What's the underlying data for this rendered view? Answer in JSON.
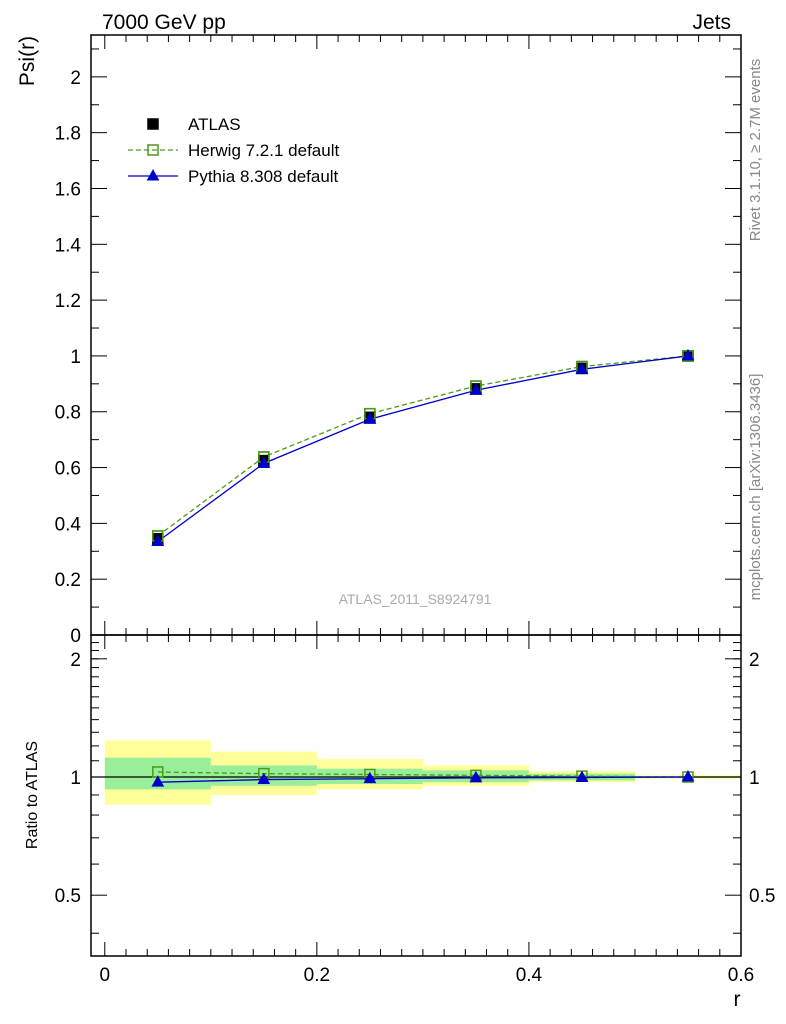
{
  "header": {
    "energy_label": "7000 GeV pp",
    "category_label": "Jets"
  },
  "side_labels": {
    "rivet": "Rivet 3.1.10, ≥ 2.7M events",
    "mcplots": "mcplots.cern.ch [arXiv:1306.3436]"
  },
  "analysis_label": "ATLAS_2011_S8924791",
  "colors": {
    "atlas": "#000000",
    "herwig": "#4a9a1a",
    "pythia": "#0000cc",
    "band_inner": "#99ee99",
    "band_outer": "#ffff99"
  },
  "chart_data": [
    {
      "type": "line",
      "xlabel": "",
      "ylabel": "Psi(r)",
      "xlim": [
        -0.013,
        0.6
      ],
      "ylim": [
        0,
        2.15
      ],
      "legend_position": "top-left",
      "y_ticks": [
        "0",
        "0.2",
        "0.4",
        "0.6",
        "0.8",
        "1",
        "1.2",
        "1.4",
        "1.6",
        "1.8",
        "2"
      ],
      "x": [
        0.05,
        0.15,
        0.25,
        0.35,
        0.45,
        0.55
      ],
      "series": [
        {
          "name": "ATLAS",
          "style": "points",
          "values": [
            0.345,
            0.625,
            0.78,
            0.882,
            0.955,
            1.0
          ]
        },
        {
          "name": "Herwig 7.2.1 default",
          "style": "dashed",
          "values": [
            0.355,
            0.638,
            0.793,
            0.892,
            0.962,
            1.0
          ]
        },
        {
          "name": "Pythia 8.308 default",
          "style": "solid",
          "values": [
            0.335,
            0.615,
            0.773,
            0.877,
            0.952,
            1.0
          ]
        }
      ]
    },
    {
      "type": "line",
      "xlabel": "r",
      "ylabel": "Ratio to ATLAS",
      "xlim": [
        -0.013,
        0.6
      ],
      "ylim": [
        0.35,
        2.3
      ],
      "log_y": true,
      "x_ticks": [
        "0",
        "0.2",
        "0.4",
        "0.6"
      ],
      "y_ticks": [
        "0.5",
        "1",
        "2"
      ],
      "x": [
        0.05,
        0.15,
        0.25,
        0.35,
        0.45,
        0.55
      ],
      "bins": [
        [
          0,
          0.1
        ],
        [
          0.1,
          0.2
        ],
        [
          0.2,
          0.3
        ],
        [
          0.3,
          0.4
        ],
        [
          0.4,
          0.5
        ],
        [
          0.5,
          0.6
        ]
      ],
      "band_inner": [
        [
          0.93,
          1.12
        ],
        [
          0.95,
          1.07
        ],
        [
          0.96,
          1.05
        ],
        [
          0.97,
          1.04
        ],
        [
          0.98,
          1.02
        ],
        [
          0.995,
          1.005
        ]
      ],
      "band_outer": [
        [
          0.85,
          1.24
        ],
        [
          0.9,
          1.16
        ],
        [
          0.93,
          1.11
        ],
        [
          0.95,
          1.07
        ],
        [
          0.97,
          1.035
        ],
        [
          0.99,
          1.01
        ]
      ],
      "series": [
        {
          "name": "Herwig 7.2.1 default",
          "style": "dashed",
          "values": [
            1.03,
            1.02,
            1.015,
            1.01,
            1.005,
            1.0
          ]
        },
        {
          "name": "Pythia 8.308 default",
          "style": "solid",
          "values": [
            0.97,
            0.985,
            0.99,
            0.995,
            0.997,
            1.0
          ]
        }
      ]
    }
  ]
}
